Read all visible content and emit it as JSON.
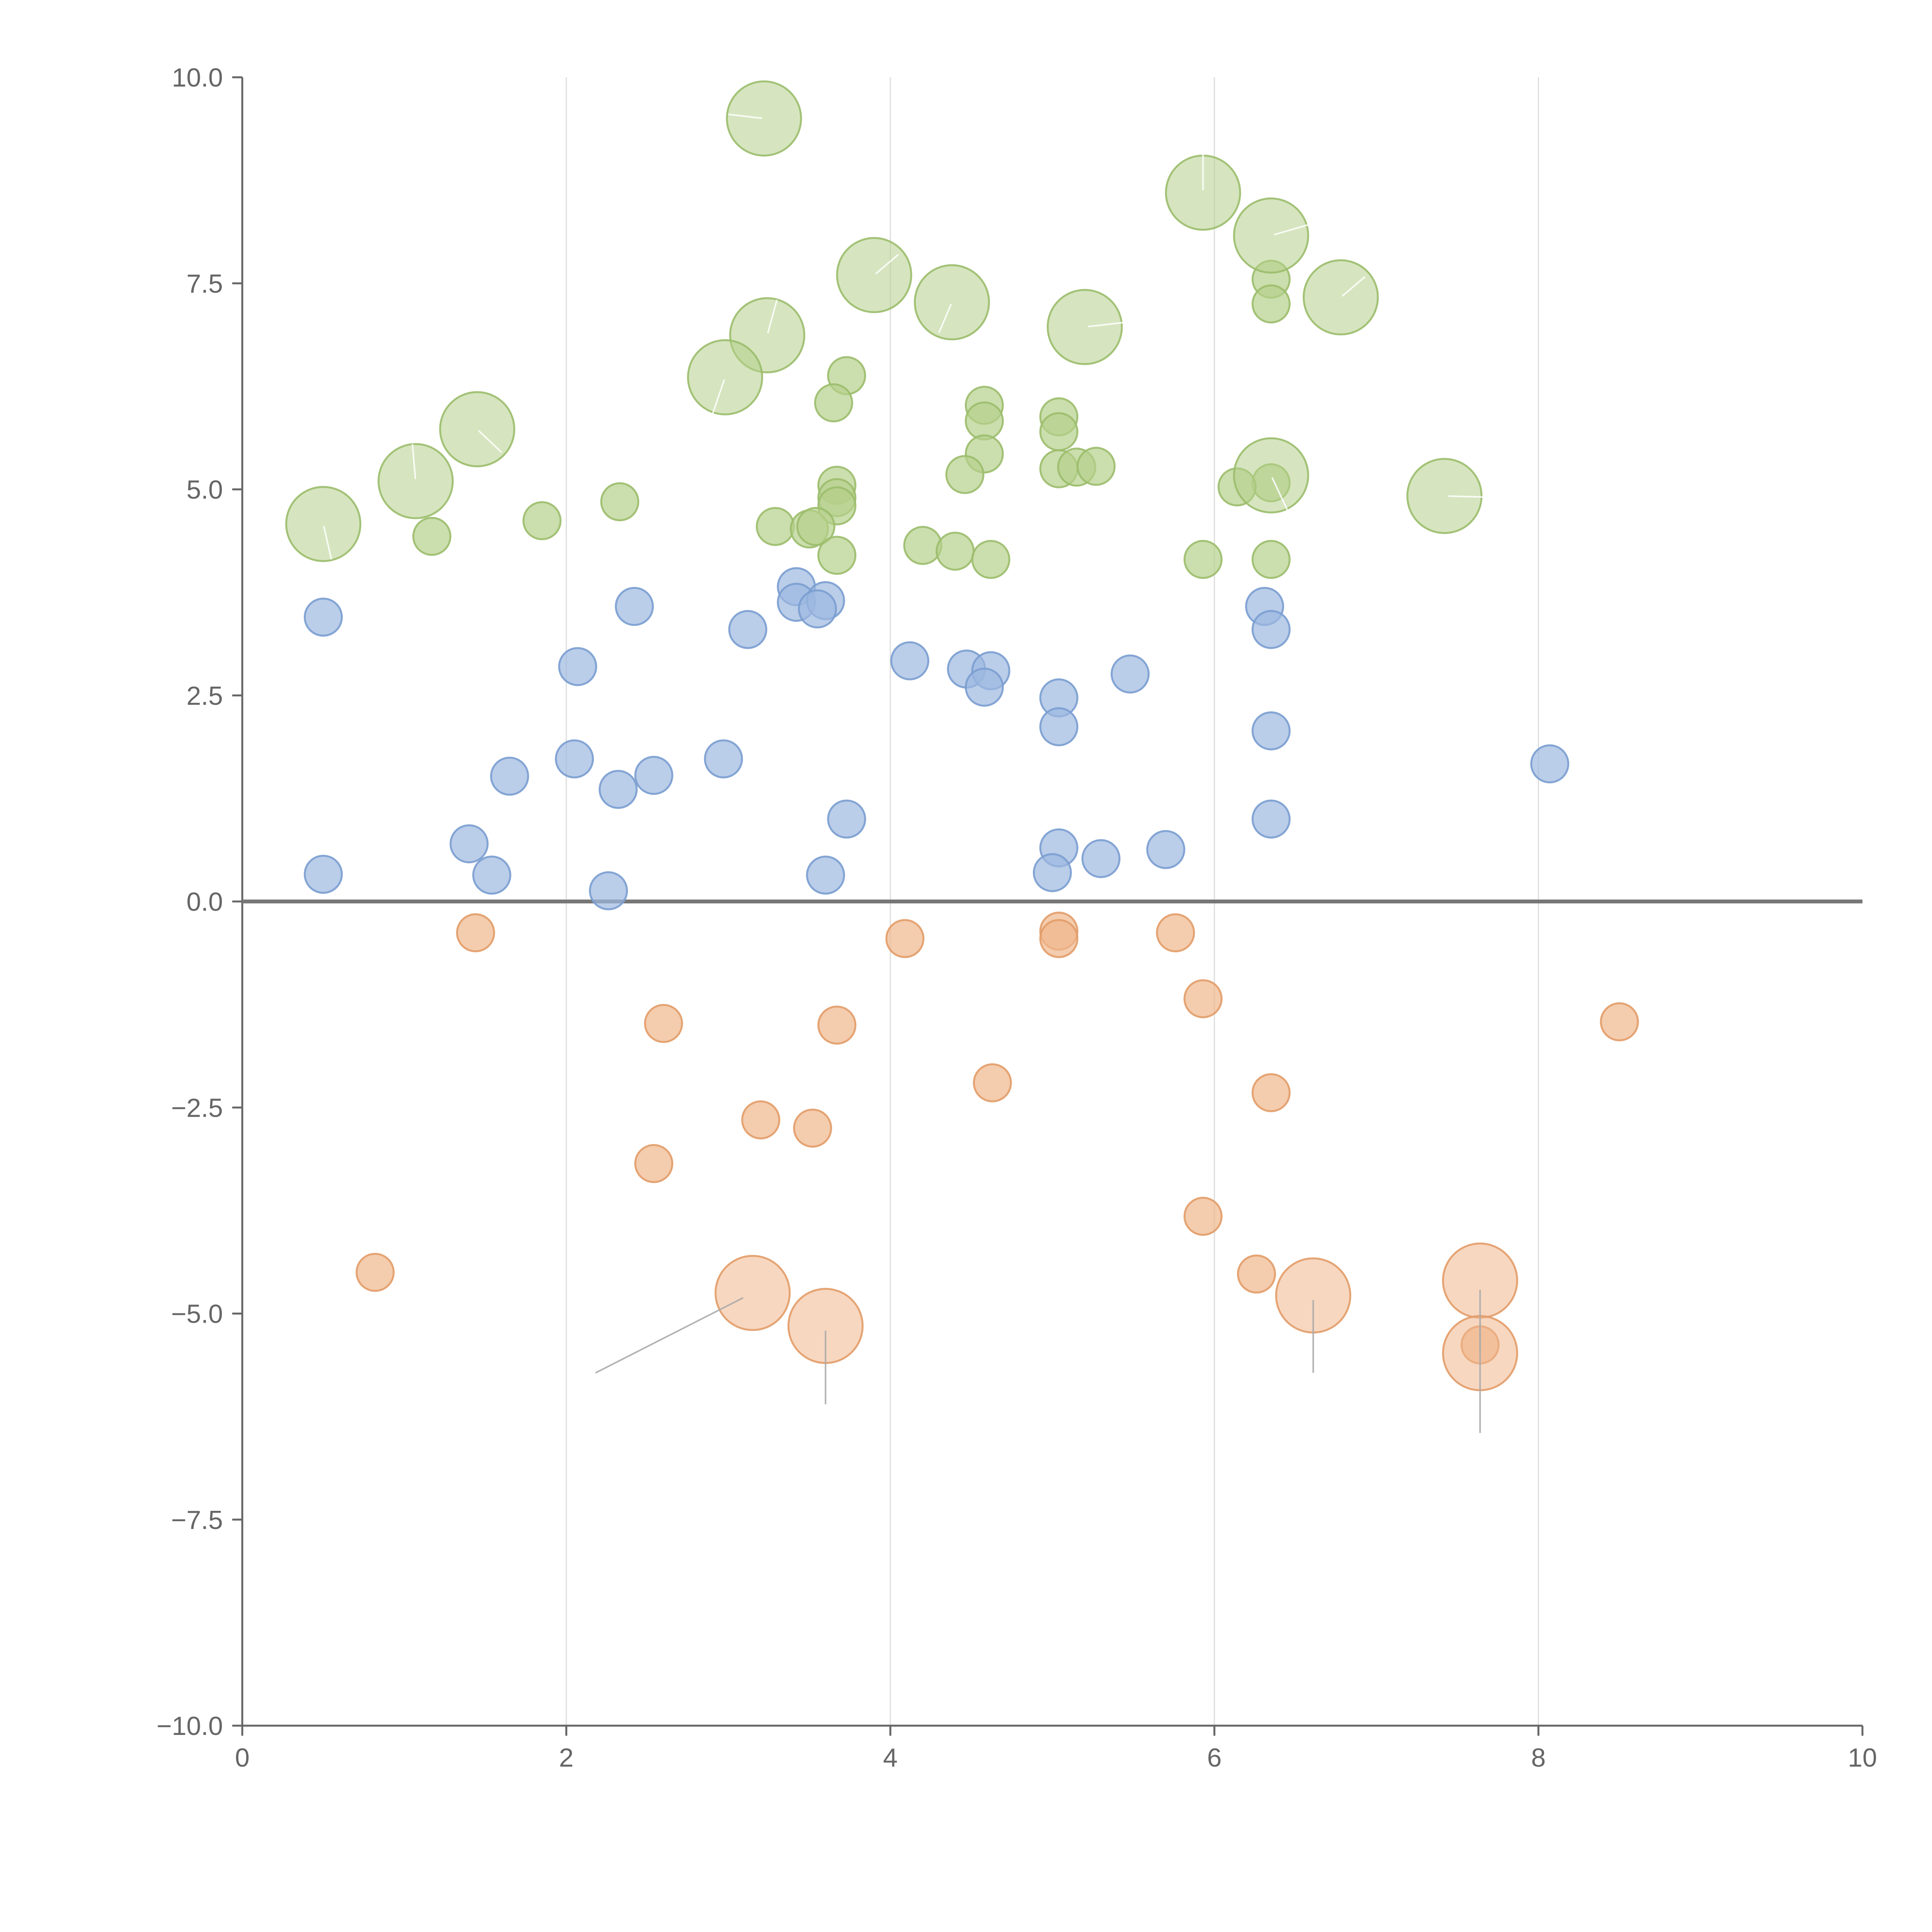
{
  "chart_data": {
    "type": "scatter",
    "title": "",
    "xlabel": "",
    "ylabel": "",
    "xlim": [
      0,
      10
    ],
    "ylim": [
      -10,
      10
    ],
    "x_ticks": [
      "0",
      "2",
      "4",
      "6",
      "8",
      "10"
    ],
    "y_ticks": [
      "10.0",
      "7.5",
      "5.0",
      "2.5",
      "0.0",
      "−2.5",
      "−5.0",
      "−7.5",
      "−10.0"
    ],
    "x_tick_values": [
      0,
      2,
      4,
      6,
      8,
      10
    ],
    "y_tick_values": [
      10,
      7.5,
      5,
      2.5,
      0,
      -2.5,
      -5,
      -7.5,
      -10
    ],
    "grid": "vertical",
    "zero_line": true,
    "series": [
      {
        "name": "green",
        "color": "#b5d08a",
        "stroke": "#9bbd6b",
        "points": [
          {
            "x": 3.22,
            "y": 9.5,
            "s": 2,
            "lx": 3.0,
            "ly": 9.55
          },
          {
            "x": 5.93,
            "y": 8.6,
            "s": 2,
            "lx": 5.93,
            "ly": 9.1
          },
          {
            "x": 6.35,
            "y": 8.08,
            "s": 2,
            "lx": 6.65,
            "ly": 8.25
          },
          {
            "x": 3.9,
            "y": 7.6,
            "s": 2,
            "lx": 4.05,
            "ly": 7.85
          },
          {
            "x": 6.35,
            "y": 7.55,
            "s": 1
          },
          {
            "x": 6.35,
            "y": 7.25,
            "s": 1
          },
          {
            "x": 6.78,
            "y": 7.33,
            "s": 2,
            "lx": 6.93,
            "ly": 7.58
          },
          {
            "x": 4.38,
            "y": 7.27,
            "s": 2,
            "lx": 4.3,
            "ly": 6.9
          },
          {
            "x": 5.2,
            "y": 6.97,
            "s": 2,
            "lx": 5.55,
            "ly": 7.05
          },
          {
            "x": 3.24,
            "y": 6.87,
            "s": 2,
            "lx": 3.3,
            "ly": 7.3
          },
          {
            "x": 3.73,
            "y": 6.38,
            "s": 1
          },
          {
            "x": 2.98,
            "y": 6.36,
            "s": 2,
            "lx": 2.9,
            "ly": 5.9
          },
          {
            "x": 3.65,
            "y": 6.05,
            "s": 1
          },
          {
            "x": 4.58,
            "y": 6.02,
            "s": 1
          },
          {
            "x": 4.58,
            "y": 5.83,
            "s": 1
          },
          {
            "x": 5.04,
            "y": 5.88,
            "s": 1
          },
          {
            "x": 1.45,
            "y": 5.73,
            "s": 2,
            "lx": 1.6,
            "ly": 5.45
          },
          {
            "x": 5.04,
            "y": 5.7,
            "s": 1
          },
          {
            "x": 4.58,
            "y": 5.43,
            "s": 1
          },
          {
            "x": 5.04,
            "y": 5.25,
            "s": 1
          },
          {
            "x": 5.15,
            "y": 5.27,
            "s": 1
          },
          {
            "x": 5.27,
            "y": 5.28,
            "s": 1
          },
          {
            "x": 4.46,
            "y": 5.18,
            "s": 1
          },
          {
            "x": 1.07,
            "y": 5.1,
            "s": 2,
            "lx": 1.05,
            "ly": 5.55
          },
          {
            "x": 6.35,
            "y": 5.17,
            "s": 2,
            "lx": 6.45,
            "ly": 4.75
          },
          {
            "x": 6.35,
            "y": 5.08,
            "s": 1
          },
          {
            "x": 6.14,
            "y": 5.03,
            "s": 1
          },
          {
            "x": 3.67,
            "y": 5.05,
            "s": 1
          },
          {
            "x": 7.42,
            "y": 4.92,
            "s": 2,
            "lx": 7.8,
            "ly": 4.9
          },
          {
            "x": 3.67,
            "y": 4.9,
            "s": 1
          },
          {
            "x": 3.67,
            "y": 4.8,
            "s": 1
          },
          {
            "x": 2.33,
            "y": 4.85,
            "s": 1
          },
          {
            "x": 1.85,
            "y": 4.62,
            "s": 1
          },
          {
            "x": 0.5,
            "y": 4.58,
            "s": 2,
            "lx": 0.55,
            "ly": 4.15
          },
          {
            "x": 3.29,
            "y": 4.55,
            "s": 1
          },
          {
            "x": 3.5,
            "y": 4.52,
            "s": 1
          },
          {
            "x": 3.54,
            "y": 4.55,
            "s": 1
          },
          {
            "x": 1.17,
            "y": 4.43,
            "s": 1
          },
          {
            "x": 4.2,
            "y": 4.32,
            "s": 1
          },
          {
            "x": 4.4,
            "y": 4.25,
            "s": 1
          },
          {
            "x": 3.67,
            "y": 4.2,
            "s": 1
          },
          {
            "x": 4.62,
            "y": 4.15,
            "s": 1
          },
          {
            "x": 5.93,
            "y": 4.15,
            "s": 1
          },
          {
            "x": 6.35,
            "y": 4.15,
            "s": 1
          }
        ]
      },
      {
        "name": "blue",
        "color": "#9db8e0",
        "stroke": "#7a9dd0",
        "points": [
          {
            "x": 3.42,
            "y": 3.82,
            "s": 1
          },
          {
            "x": 3.42,
            "y": 3.63,
            "s": 1
          },
          {
            "x": 3.6,
            "y": 3.65,
            "s": 1
          },
          {
            "x": 3.55,
            "y": 3.55,
            "s": 1
          },
          {
            "x": 2.42,
            "y": 3.58,
            "s": 1
          },
          {
            "x": 6.31,
            "y": 3.58,
            "s": 1
          },
          {
            "x": 0.5,
            "y": 3.45,
            "s": 1
          },
          {
            "x": 3.12,
            "y": 3.3,
            "s": 1
          },
          {
            "x": 6.35,
            "y": 3.3,
            "s": 1
          },
          {
            "x": 4.12,
            "y": 2.92,
            "s": 1
          },
          {
            "x": 2.07,
            "y": 2.85,
            "s": 1
          },
          {
            "x": 4.47,
            "y": 2.82,
            "s": 1
          },
          {
            "x": 4.62,
            "y": 2.8,
            "s": 1
          },
          {
            "x": 5.48,
            "y": 2.76,
            "s": 1
          },
          {
            "x": 4.58,
            "y": 2.6,
            "s": 1
          },
          {
            "x": 5.04,
            "y": 2.47,
            "s": 1
          },
          {
            "x": 5.04,
            "y": 2.12,
            "s": 1
          },
          {
            "x": 6.35,
            "y": 2.07,
            "s": 1
          },
          {
            "x": 2.05,
            "y": 1.73,
            "s": 1
          },
          {
            "x": 2.97,
            "y": 1.73,
            "s": 1
          },
          {
            "x": 8.07,
            "y": 1.67,
            "s": 1
          },
          {
            "x": 1.65,
            "y": 1.52,
            "s": 1
          },
          {
            "x": 2.54,
            "y": 1.53,
            "s": 1
          },
          {
            "x": 2.32,
            "y": 1.36,
            "s": 1
          },
          {
            "x": 3.73,
            "y": 1.0,
            "s": 1
          },
          {
            "x": 6.35,
            "y": 1.0,
            "s": 1
          },
          {
            "x": 1.4,
            "y": 0.7,
            "s": 1
          },
          {
            "x": 5.04,
            "y": 0.65,
            "s": 1
          },
          {
            "x": 5.7,
            "y": 0.63,
            "s": 1
          },
          {
            "x": 5.3,
            "y": 0.52,
            "s": 1
          },
          {
            "x": 5.0,
            "y": 0.35,
            "s": 1
          },
          {
            "x": 0.5,
            "y": 0.33,
            "s": 1
          },
          {
            "x": 1.54,
            "y": 0.32,
            "s": 1
          },
          {
            "x": 3.6,
            "y": 0.32,
            "s": 1
          },
          {
            "x": 2.26,
            "y": 0.13,
            "s": 1
          }
        ]
      },
      {
        "name": "orange",
        "color": "#f0b78c",
        "stroke": "#e29c68",
        "points": [
          {
            "x": 1.44,
            "y": -0.38,
            "s": 1
          },
          {
            "x": 5.04,
            "y": -0.36,
            "s": 1
          },
          {
            "x": 5.04,
            "y": -0.45,
            "s": 1
          },
          {
            "x": 5.76,
            "y": -0.38,
            "s": 1
          },
          {
            "x": 4.09,
            "y": -0.45,
            "s": 1
          },
          {
            "x": 5.93,
            "y": -1.18,
            "s": 1
          },
          {
            "x": 8.5,
            "y": -1.46,
            "s": 1
          },
          {
            "x": 2.6,
            "y": -1.48,
            "s": 1
          },
          {
            "x": 3.67,
            "y": -1.5,
            "s": 1
          },
          {
            "x": 4.63,
            "y": -2.2,
            "s": 1
          },
          {
            "x": 6.35,
            "y": -2.32,
            "s": 1
          },
          {
            "x": 3.2,
            "y": -2.65,
            "s": 1
          },
          {
            "x": 3.52,
            "y": -2.75,
            "s": 1
          },
          {
            "x": 2.54,
            "y": -3.18,
            "s": 1
          },
          {
            "x": 5.93,
            "y": -3.82,
            "s": 1
          },
          {
            "x": 0.82,
            "y": -4.5,
            "s": 1
          },
          {
            "x": 6.26,
            "y": -4.52,
            "s": 1
          },
          {
            "x": 7.64,
            "y": -4.6,
            "s": 2,
            "lx": 7.64,
            "ly": -6.45
          },
          {
            "x": 3.15,
            "y": -4.75,
            "s": 2,
            "lx": 2.18,
            "ly": -5.72
          },
          {
            "x": 6.61,
            "y": -4.78,
            "s": 2,
            "lx": 6.61,
            "ly": -5.72
          },
          {
            "x": 3.6,
            "y": -5.15,
            "s": 2,
            "lx": 3.6,
            "ly": -6.1
          },
          {
            "x": 7.64,
            "y": -5.38,
            "s": 1
          },
          {
            "x": 7.64,
            "y": -5.48,
            "s": 2,
            "lx": 7.64,
            "ly": -5.1
          }
        ]
      }
    ]
  }
}
